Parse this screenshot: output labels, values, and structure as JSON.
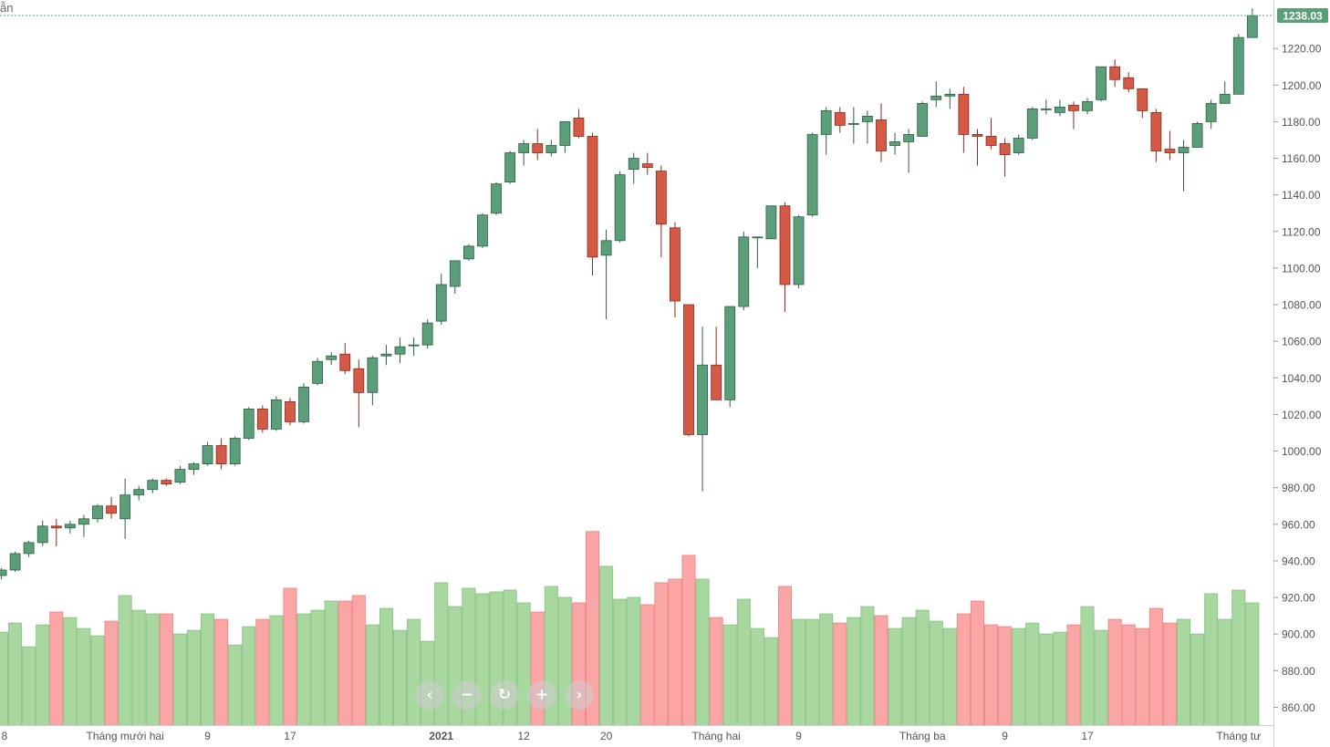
{
  "chart_data": {
    "type": "candlestick",
    "title": "",
    "corner_label": "ẫn",
    "last_price": "1238.03",
    "ylim": [
      850,
      1245
    ],
    "volume_range_price_units": [
      855,
      956
    ],
    "y_ticks": [
      "860.00",
      "880.00",
      "900.00",
      "920.00",
      "940.00",
      "960.00",
      "980.00",
      "1000.00",
      "1020.00",
      "1040.00",
      "1060.00",
      "1080.00",
      "1100.00",
      "1120.00",
      "1140.00",
      "1160.00",
      "1180.00",
      "1200.00",
      "1220.00"
    ],
    "x_tick_labels": [
      {
        "label": "8",
        "index": 0
      },
      {
        "label": "Tháng mười hai",
        "index": 9
      },
      {
        "label": "9",
        "index": 15
      },
      {
        "label": "17",
        "index": 21
      },
      {
        "label": "2021",
        "index": 32,
        "bold": true
      },
      {
        "label": "12",
        "index": 38
      },
      {
        "label": "20",
        "index": 44
      },
      {
        "label": "Tháng hai",
        "index": 52
      },
      {
        "label": "9",
        "index": 58
      },
      {
        "label": "Tháng ba",
        "index": 67
      },
      {
        "label": "9",
        "index": 73
      },
      {
        "label": "17",
        "index": 79
      },
      {
        "label": "Tháng tư",
        "index": 90
      }
    ],
    "colors": {
      "up": "#5a9e7a",
      "down": "#d45a45",
      "volume_up": "#a8d7a0",
      "volume_down": "#fba6a6",
      "last_price_bg": "#5a9e7a",
      "grid_line": "#5a9e7a"
    },
    "series": [
      {
        "name": "price",
        "ohlc": [
          [
            932,
            936,
            930,
            935
          ],
          [
            935,
            945,
            934,
            944
          ],
          [
            944,
            951,
            942,
            950
          ],
          [
            950,
            962,
            948,
            959
          ],
          [
            959,
            963,
            948,
            958
          ],
          [
            958,
            962,
            955,
            960
          ],
          [
            960,
            965,
            953,
            963
          ],
          [
            963,
            971,
            961,
            970
          ],
          [
            970,
            975,
            963,
            966
          ],
          [
            963,
            985,
            952,
            976
          ],
          [
            976,
            981,
            973,
            979
          ],
          [
            979,
            985,
            977,
            984
          ],
          [
            984,
            985,
            981,
            982
          ],
          [
            983,
            992,
            982,
            990
          ],
          [
            990,
            994,
            987,
            993
          ],
          [
            993,
            1005,
            992,
            1003
          ],
          [
            1003,
            1007,
            990,
            993
          ],
          [
            993,
            1008,
            992,
            1007
          ],
          [
            1007,
            1024,
            1006,
            1023
          ],
          [
            1023,
            1025,
            1010,
            1012
          ],
          [
            1012,
            1030,
            1011,
            1028
          ],
          [
            1027,
            1029,
            1014,
            1016
          ],
          [
            1016,
            1037,
            1015,
            1035
          ],
          [
            1037,
            1051,
            1036,
            1049
          ],
          [
            1050,
            1054,
            1047,
            1052
          ],
          [
            1053,
            1059,
            1042,
            1044
          ],
          [
            1045,
            1050,
            1013,
            1032
          ],
          [
            1032,
            1052,
            1025,
            1051
          ],
          [
            1052,
            1058,
            1047,
            1053
          ],
          [
            1053,
            1062,
            1048,
            1057
          ],
          [
            1058,
            1062,
            1052,
            1058
          ],
          [
            1058,
            1072,
            1056,
            1070
          ],
          [
            1071,
            1097,
            1069,
            1091
          ],
          [
            1090,
            1104,
            1086,
            1104
          ],
          [
            1105,
            1113,
            1104,
            1112
          ],
          [
            1112,
            1130,
            1111,
            1129
          ],
          [
            1130,
            1147,
            1129,
            1146
          ],
          [
            1147,
            1164,
            1146,
            1163
          ],
          [
            1163,
            1170,
            1156,
            1168
          ],
          [
            1168,
            1176,
            1159,
            1163
          ],
          [
            1163,
            1170,
            1161,
            1167
          ],
          [
            1167,
            1180,
            1163,
            1180
          ],
          [
            1182,
            1187,
            1171,
            1172
          ],
          [
            1172,
            1174,
            1096,
            1106
          ],
          [
            1107,
            1121,
            1072,
            1115
          ],
          [
            1115,
            1153,
            1114,
            1151
          ],
          [
            1154,
            1163,
            1146,
            1160
          ],
          [
            1157,
            1163,
            1151,
            1155
          ],
          [
            1153,
            1156,
            1106,
            1124
          ],
          [
            1122,
            1125,
            1073,
            1082
          ],
          [
            1080,
            1080,
            1008,
            1009
          ],
          [
            1009,
            1068,
            978,
            1047
          ],
          [
            1047,
            1068,
            1028,
            1028
          ],
          [
            1028,
            1079,
            1024,
            1079
          ],
          [
            1079,
            1120,
            1077,
            1117
          ],
          [
            1117,
            1117,
            1100,
            1117
          ],
          [
            1116,
            1134,
            1116,
            1134
          ],
          [
            1134,
            1136,
            1076,
            1091
          ],
          [
            1091,
            1129,
            1089,
            1128
          ],
          [
            1129,
            1174,
            1128,
            1173
          ],
          [
            1173,
            1188,
            1162,
            1186
          ],
          [
            1185,
            1188,
            1174,
            1178
          ],
          [
            1179,
            1188,
            1168,
            1179
          ],
          [
            1180,
            1186,
            1168,
            1183
          ],
          [
            1181,
            1190,
            1158,
            1164
          ],
          [
            1167,
            1174,
            1162,
            1169
          ],
          [
            1169,
            1176,
            1152,
            1173
          ],
          [
            1172,
            1191,
            1172,
            1190
          ],
          [
            1192,
            1202,
            1188,
            1194
          ],
          [
            1194,
            1198,
            1187,
            1195
          ],
          [
            1195,
            1199,
            1163,
            1173
          ],
          [
            1173,
            1176,
            1156,
            1172
          ],
          [
            1172,
            1182,
            1165,
            1167
          ],
          [
            1168,
            1171,
            1150,
            1162
          ],
          [
            1163,
            1173,
            1162,
            1171
          ],
          [
            1171,
            1188,
            1170,
            1187
          ],
          [
            1187,
            1192,
            1184,
            1187
          ],
          [
            1185,
            1192,
            1183,
            1188
          ],
          [
            1189,
            1191,
            1176,
            1186
          ],
          [
            1186,
            1193,
            1184,
            1191
          ],
          [
            1192,
            1210,
            1191,
            1210
          ],
          [
            1210,
            1214,
            1199,
            1203
          ],
          [
            1204,
            1207,
            1196,
            1198
          ],
          [
            1198,
            1198,
            1182,
            1186
          ],
          [
            1185,
            1187,
            1158,
            1164
          ],
          [
            1165,
            1175,
            1159,
            1163
          ],
          [
            1163,
            1170,
            1142,
            1166
          ],
          [
            1166,
            1180,
            1166,
            1179
          ],
          [
            1180,
            1192,
            1176,
            1190
          ],
          [
            1190,
            1202,
            1190,
            1195
          ],
          [
            1195,
            1228,
            1195,
            1226
          ],
          [
            1226,
            1242,
            1226,
            1238
          ]
        ]
      },
      {
        "name": "volume",
        "values": [
          901,
          906,
          893,
          905,
          912,
          909,
          903,
          899,
          907,
          921,
          913,
          911,
          911,
          900,
          902,
          911,
          908,
          894,
          904,
          908,
          910,
          925,
          911,
          913,
          918,
          918,
          921,
          905,
          914,
          902,
          908,
          896,
          928,
          915,
          925,
          922,
          923,
          924,
          917,
          912,
          926,
          920,
          917,
          956,
          937,
          919,
          920,
          916,
          928,
          930,
          943,
          930,
          909,
          905,
          919,
          903,
          898,
          926,
          908,
          908,
          911,
          906,
          909,
          915,
          910,
          903,
          909,
          913,
          907,
          903,
          911,
          918,
          905,
          904,
          903,
          906,
          900,
          901,
          905,
          915,
          902,
          908,
          905,
          903,
          914,
          906,
          908,
          900,
          922,
          908,
          924,
          917
        ]
      }
    ],
    "legend": "none",
    "grid": false
  },
  "navigation": {
    "prev_icon": "‹",
    "zoom_out_icon": "−",
    "reset_icon": "↻",
    "zoom_in_icon": "+",
    "next_icon": "›"
  }
}
